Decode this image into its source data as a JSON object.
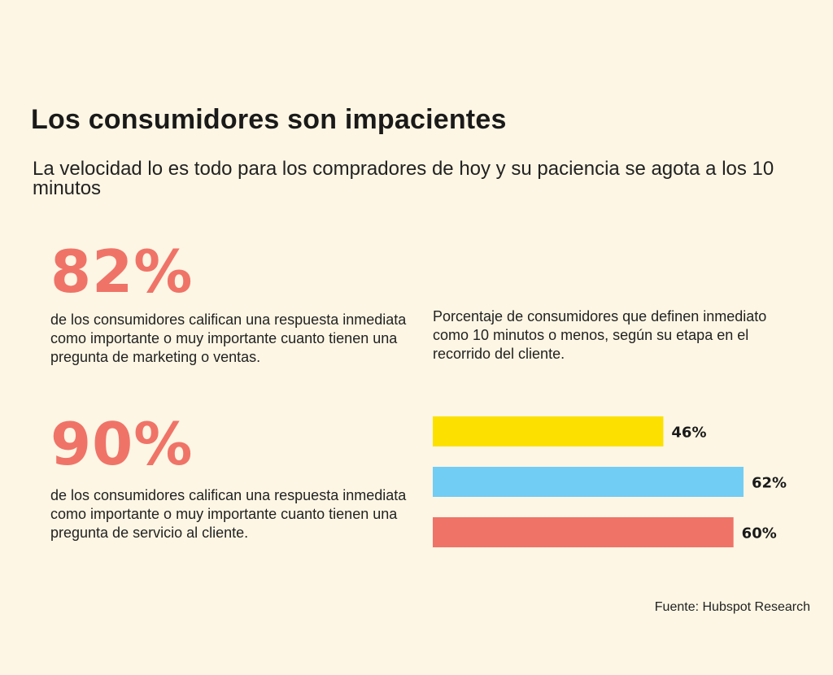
{
  "title": "Los consumidores son impacientes",
  "subtitle": "La velocidad lo es todo para los compradores de hoy y su paciencia se agota a los 10 minutos",
  "stats": [
    {
      "number": "82%",
      "text": "de los consumidores califican una respuesta inmediata como importante o muy importante cuanto tienen una pregunta de marketing o ventas."
    },
    {
      "number": "90%",
      "text": "de los consumidores califican una respuesta inmediata como importante o muy importante cuanto tienen una pregunta de servicio al cliente."
    }
  ],
  "chart_description": "Porcentaje de consumidores que definen inmediato como 10 minutos o menos, según su etapa en el recorrido del cliente.",
  "source": "Fuente: Hubspot Research",
  "chart_data": {
    "type": "bar",
    "orientation": "horizontal",
    "values": [
      46,
      62,
      60
    ],
    "data_labels": [
      "46%",
      "62%",
      "60%"
    ],
    "colors": [
      "#fce100",
      "#72cdf4",
      "#f07368"
    ],
    "xlim": [
      0,
      100
    ],
    "grid": false,
    "axes_visible": false
  }
}
